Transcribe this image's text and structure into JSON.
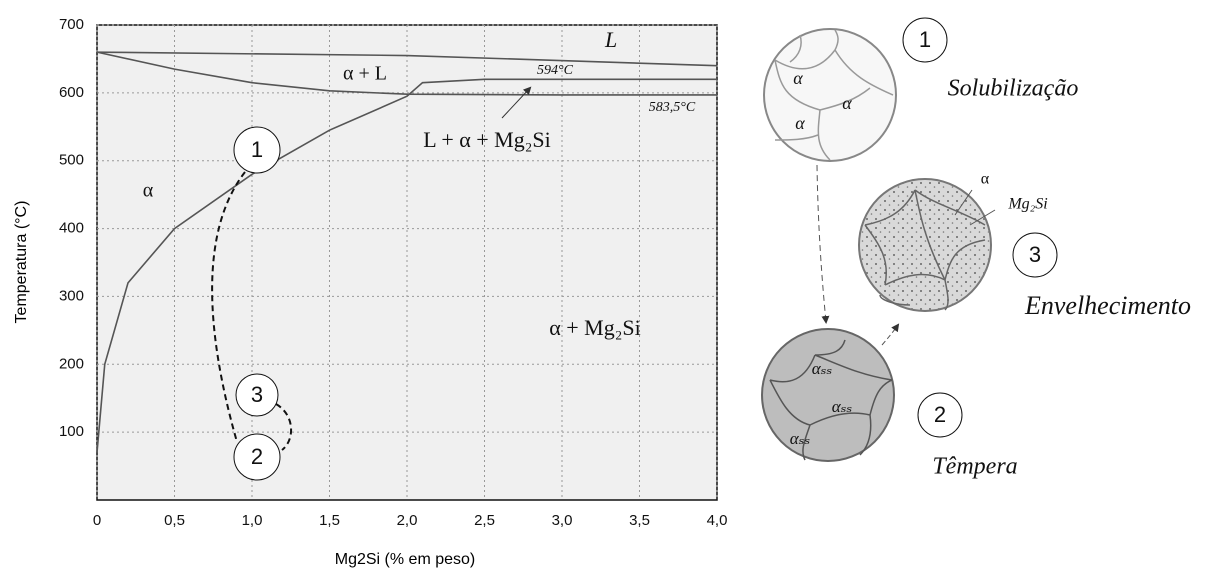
{
  "chart_data": {
    "type": "line",
    "xlabel": "Mg2Si (% em peso)",
    "ylabel": "Temperatura (°C)",
    "xlim": [
      0,
      4
    ],
    "ylim": [
      0,
      700
    ],
    "xticks": [
      0,
      {
        "value": 0.5,
        "label": "0,5"
      },
      {
        "value": 1,
        "label": "1,0"
      },
      {
        "value": 1.5,
        "label": "1,5"
      },
      {
        "value": 2,
        "label": "2,0"
      },
      {
        "value": 2.5,
        "label": "2,5"
      },
      {
        "value": 3,
        "label": "3,0"
      },
      {
        "value": 3.5,
        "label": "3,5"
      },
      {
        "value": 4,
        "label": "4,0"
      }
    ],
    "yticks": [
      100,
      200,
      300,
      400,
      500,
      600,
      700
    ],
    "grid": true,
    "series": [
      {
        "color": "#555555",
        "x": [
          0,
          2,
          4
        ],
        "values": [
          660,
          655,
          640
        ]
      },
      {
        "color": "#555555",
        "x": [
          0,
          0.5,
          1,
          1.5,
          2,
          3,
          4
        ],
        "values": [
          660,
          635,
          615,
          603,
          598,
          597,
          597
        ]
      },
      {
        "color": "#555555",
        "x": [
          0,
          0.05,
          0.2,
          0.5,
          1,
          1.5,
          2,
          2.1,
          2.5,
          4
        ],
        "values": [
          70,
          200,
          320,
          400,
          480,
          545,
          595,
          615,
          620,
          620
        ]
      }
    ],
    "annotations": [
      "L",
      "α + L",
      "594°C",
      "583,5°C",
      "L + α + Mg₂Si",
      "α",
      "α + Mg₂Si",
      "1",
      "3",
      "2"
    ]
  },
  "stages": {
    "solubilizacao": {
      "number": "1",
      "label": "Solubilização",
      "phases": [
        "α",
        "α",
        "α"
      ]
    },
    "envelhecimento": {
      "number": "3",
      "label": "Envelhecimento",
      "phases": [
        "α",
        "Mg₂Si"
      ]
    },
    "tempera": {
      "number": "2",
      "label": "Têmpera",
      "phases": [
        "αₛₛ",
        "αₛₛ",
        "αₛₛ"
      ]
    }
  }
}
